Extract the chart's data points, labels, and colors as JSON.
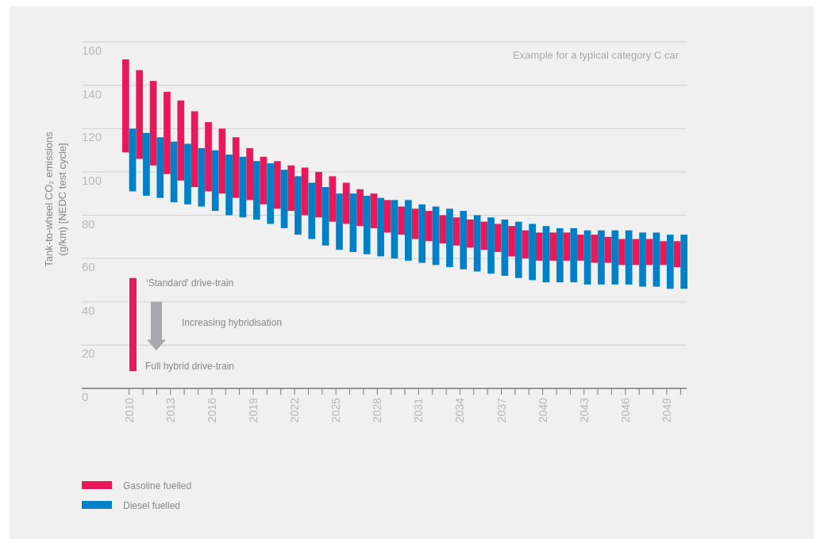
{
  "chart_data": {
    "type": "bar",
    "ylabel": "Tank-to-wheel CO₂ emissions (g/km) [NEDC test cycle]",
    "categories": [
      "2010",
      null,
      null,
      "2013",
      null,
      null,
      "2016",
      null,
      null,
      "2019",
      null,
      null,
      "2022",
      null,
      null,
      "2025",
      null,
      null,
      "2028",
      null,
      null,
      "2031",
      null,
      null,
      "2034",
      null,
      null,
      "2037",
      null,
      null,
      "2040",
      null,
      null,
      "2043",
      null,
      null,
      "2046",
      null,
      null,
      "2049",
      null
    ],
    "series": [
      {
        "name": "Gasoline fuelled",
        "color": "#e8195a",
        "base": [
          109,
          106,
          103,
          99,
          96,
          93,
          91,
          90,
          88,
          87,
          85,
          83,
          82,
          80,
          79,
          77,
          76,
          75,
          74,
          72,
          71,
          69,
          68,
          67,
          66,
          65,
          64,
          63,
          61,
          60,
          59,
          59,
          59,
          59,
          58,
          58,
          57,
          57,
          57,
          57,
          56
        ],
        "values": [
          43,
          41,
          39,
          38,
          37,
          35,
          32,
          30,
          28,
          24,
          22,
          22,
          21,
          22,
          21,
          21,
          19,
          17,
          16,
          15,
          13,
          14,
          14,
          13,
          13,
          13,
          13,
          13,
          14,
          13,
          13,
          13,
          13,
          12,
          13,
          12,
          12,
          12,
          12,
          11,
          12
        ]
      },
      {
        "name": "Diesel fuelled",
        "color": "#0080c6",
        "base": [
          91,
          89,
          88,
          86,
          85,
          84,
          82,
          80,
          79,
          78,
          76,
          74,
          71,
          69,
          66,
          64,
          63,
          62,
          61,
          60,
          59,
          58,
          57,
          56,
          55,
          54,
          53,
          52,
          51,
          50,
          49,
          49,
          49,
          48,
          48,
          48,
          48,
          47,
          47,
          46,
          46
        ],
        "values": [
          29,
          29,
          28,
          28,
          28,
          27,
          28,
          28,
          28,
          27,
          28,
          27,
          27,
          26,
          27,
          26,
          27,
          27,
          27,
          27,
          28,
          27,
          27,
          27,
          27,
          26,
          26,
          26,
          26,
          26,
          26,
          25,
          25,
          25,
          25,
          25,
          25,
          25,
          25,
          25,
          25
        ]
      }
    ],
    "ylim": [
      0,
      160
    ],
    "yticks": [
      0,
      20,
      40,
      60,
      80,
      100,
      120,
      140,
      160
    ],
    "grid": "y",
    "legend": "bottom",
    "annotations": [
      "Example for a typical category C car",
      "‘Standard’ drive-train",
      "Increasing hybridisation",
      "Full hybrid drive-train"
    ]
  }
}
